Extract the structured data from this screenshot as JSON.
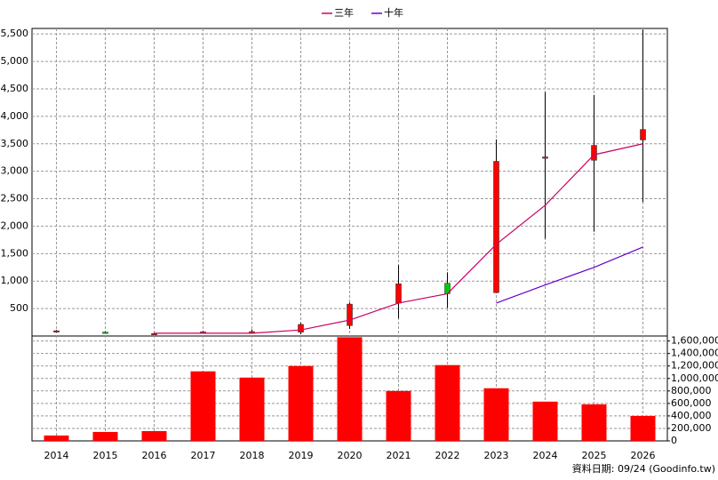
{
  "chart_data": {
    "type": "candlestick",
    "categories": [
      "2014",
      "2015",
      "2016",
      "2017",
      "2018",
      "2019",
      "2020",
      "2021",
      "2022",
      "2023",
      "2024",
      "2025",
      "2026"
    ],
    "open": [
      90,
      70,
      40,
      65,
      75,
      70,
      190,
      600,
      960,
      790,
      3240,
      3200,
      3570
    ],
    "close": [
      95,
      55,
      45,
      75,
      80,
      210,
      580,
      950,
      770,
      3180,
      3260,
      3470,
      3760
    ],
    "high": [
      110,
      80,
      55,
      90,
      120,
      240,
      610,
      1290,
      1160,
      3580,
      4440,
      4390,
      5580
    ],
    "low": [
      80,
      45,
      35,
      50,
      40,
      30,
      130,
      320,
      510,
      780,
      1770,
      1900,
      2440
    ],
    "up_color": "#ff0000",
    "down_color": "#00cc00",
    "series": [
      {
        "name": "三年",
        "color": "#cc0066",
        "values": [
          null,
          null,
          50,
          50,
          50,
          110,
          290,
          600,
          770,
          1670,
          2380,
          3300,
          3500
        ]
      },
      {
        "name": "十年",
        "color": "#6600cc",
        "values": [
          null,
          null,
          null,
          null,
          null,
          null,
          null,
          null,
          null,
          600,
          930,
          1250,
          1620
        ]
      }
    ],
    "ylim": [
      0,
      5600
    ],
    "yticks": [
      500,
      {
        "value": 1000,
        "label": "1,000"
      },
      {
        "value": 1500,
        "label": "1,500"
      },
      {
        "value": 2000,
        "label": "2,000"
      },
      {
        "value": 2500,
        "label": "2,500"
      },
      {
        "value": 3000,
        "label": "3,000"
      },
      {
        "value": 3500,
        "label": "3,500"
      },
      {
        "value": 4000,
        "label": "4,000"
      },
      {
        "value": 4500,
        "label": "4,500"
      },
      {
        "value": 5000,
        "label": "5,000"
      },
      {
        "value": 5500,
        "label": "5,500"
      }
    ],
    "grid": true,
    "volume": {
      "color": "#ff0000",
      "values": [
        86000,
        143000,
        157000,
        1114000,
        1014000,
        1200000,
        1660000,
        800000,
        1214000,
        843000,
        629000,
        586000,
        400000
      ],
      "ylim": [
        0,
        1680000
      ],
      "yticks": [
        0,
        {
          "value": 200000,
          "label": "200,000"
        },
        {
          "value": 400000,
          "label": "400,000"
        },
        {
          "value": 600000,
          "label": "600,000"
        },
        {
          "value": 800000,
          "label": "800,000"
        },
        {
          "value": 1000000,
          "label": "1,000,000"
        },
        {
          "value": 1200000,
          "label": "1,200,000"
        },
        {
          "value": 1400000,
          "label": "1,400,000"
        },
        {
          "value": 1600000,
          "label": "1,600,000"
        }
      ]
    },
    "footnote": "資料日期: 09/24  (Goodinfo.tw)"
  }
}
